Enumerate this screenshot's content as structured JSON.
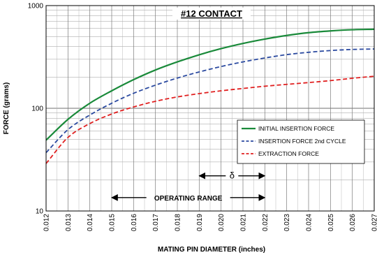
{
  "chart_data": {
    "type": "line",
    "title": "#12 CONTACT",
    "xlabel": "MATING PIN  DIAMETER (inches)",
    "ylabel": "FORCE (grams)",
    "xlim": [
      0.012,
      0.027
    ],
    "ylim": [
      10,
      1000
    ],
    "yscale": "log",
    "grid": true,
    "legend_position": "right",
    "x_ticks": [
      "0.012",
      "0.013",
      "0.014",
      "0.015",
      "0.016",
      "0.017",
      "0.018",
      "0.019",
      "0.020",
      "0.021",
      "0.022",
      "0.023",
      "0.024",
      "0.025",
      "0.026",
      "0.027"
    ],
    "y_ticks": [
      {
        "value": 10,
        "label": "10"
      },
      {
        "value": 100,
        "label": "100"
      },
      {
        "value": 1000,
        "label": "1000"
      }
    ],
    "x": [
      0.012,
      0.013,
      0.014,
      0.015,
      0.016,
      0.017,
      0.018,
      0.019,
      0.02,
      0.021,
      0.022,
      0.023,
      0.024,
      0.025,
      0.026,
      0.027
    ],
    "series": [
      {
        "name": "INITIAL INSERTION FORCE",
        "color": "#1a8a3a",
        "dash": "solid",
        "values": [
          49,
          78,
          112,
          148,
          190,
          236,
          283,
          332,
          381,
          428,
          472,
          512,
          545,
          567,
          582,
          588
        ]
      },
      {
        "name": "INSERTION FORCE 2nd CYCLE",
        "color": "#2b4aa0",
        "dash": "dashed",
        "values": [
          37,
          62,
          86,
          112,
          140,
          168,
          197,
          226,
          255,
          283,
          309,
          333,
          351,
          365,
          374,
          378
        ]
      },
      {
        "name": "EXTRACTION FORCE",
        "color": "#e02020",
        "dash": "dashed",
        "values": [
          29,
          52,
          71,
          88,
          103,
          117,
          129,
          139,
          148,
          156,
          164,
          171,
          178,
          186,
          196,
          205
        ]
      }
    ],
    "annotations": {
      "delta": {
        "label": "δ",
        "x_from": 0.019,
        "x_to": 0.022,
        "y": 22
      },
      "operating_range": {
        "label": "OPERATING RANGE",
        "x_from": 0.015,
        "x_to": 0.022,
        "y": 13.5
      }
    }
  }
}
